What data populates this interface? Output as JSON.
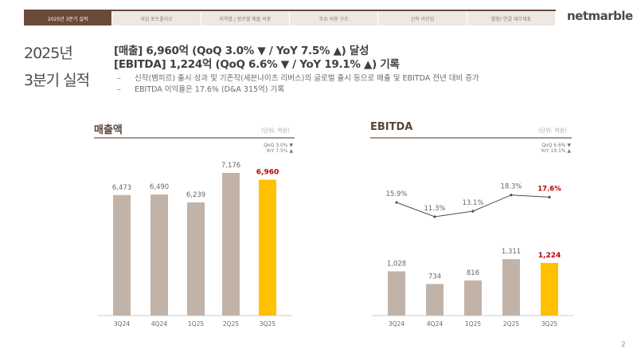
{
  "nav": {
    "tabs": [
      "2025년 3분기 실적",
      "게임 포트폴리오",
      "지역별 / 장르별 매출 비중",
      "주요 비용 구조",
      "신작 라인업",
      "별첨) 연결 재무제표"
    ],
    "active": 0
  },
  "logo": "netmarble",
  "title": {
    "line1": "2025년",
    "line2": "3분기 실적"
  },
  "headline": {
    "line1": "[매출] 6,960억 (QoQ 3.0% ▼ / YoY 7.5% ▲) 달성",
    "line2": "[EBITDA] 1,224억 (QoQ 6.6% ▼ / YoY 19.1% ▲) 기록"
  },
  "bullets": [
    "신작(뱀피르) 출시 성과 및 기존작(세븐나이츠 리버스)의 글로벌 출시 등으로 매출 및 EBITDA 전년 대비 증가",
    "EBITDA 이익율은 17.6% (D&A 315억) 기록"
  ],
  "bullet_marker": "–",
  "colors": {
    "bar": "#c2b3a9",
    "highlight": "#ffc000",
    "highlight_label": "#c00000",
    "line": "#5a4a42",
    "brand": "#6b4a3a"
  },
  "chart_data": [
    {
      "type": "bar",
      "title": "매출액",
      "unit": "(단위: 억원)",
      "note": [
        "QoQ 3.0% ▼",
        "YoY 7.5% ▲"
      ],
      "categories": [
        "3Q24",
        "4Q24",
        "1Q25",
        "2Q25",
        "3Q25"
      ],
      "values": [
        6473,
        6490,
        6239,
        7176,
        6960
      ],
      "labels": [
        "6,473",
        "6,490",
        "6,239",
        "7,176",
        "6,960"
      ],
      "highlight_index": 4
    },
    {
      "type": "bar+line",
      "title": "EBITDA",
      "unit": "(단위: 억원)",
      "note": [
        "QoQ 6.6% ▼",
        "YoY 19.1% ▲"
      ],
      "categories": [
        "3Q24",
        "4Q24",
        "1Q25",
        "2Q25",
        "3Q25"
      ],
      "values": [
        1028,
        734,
        816,
        1311,
        1224
      ],
      "labels": [
        "1,028",
        "734",
        "816",
        "1,311",
        "1,224"
      ],
      "margin_values": [
        15.9,
        11.3,
        13.1,
        18.3,
        17.6
      ],
      "margin_labels": [
        "15.9%",
        "11.3%",
        "13.1%",
        "18.3%",
        "17.6%"
      ],
      "highlight_index": 4
    }
  ],
  "page_number": "2"
}
